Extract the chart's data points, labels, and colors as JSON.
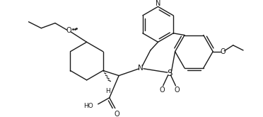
{
  "bg_color": "#ffffff",
  "line_color": "#1a1a1a",
  "lw": 1.0,
  "fs": 6.5,
  "figsize": [
    3.72,
    1.65
  ],
  "dpi": 100,
  "xlim": [
    0,
    372
  ],
  "ylim": [
    0,
    165
  ]
}
